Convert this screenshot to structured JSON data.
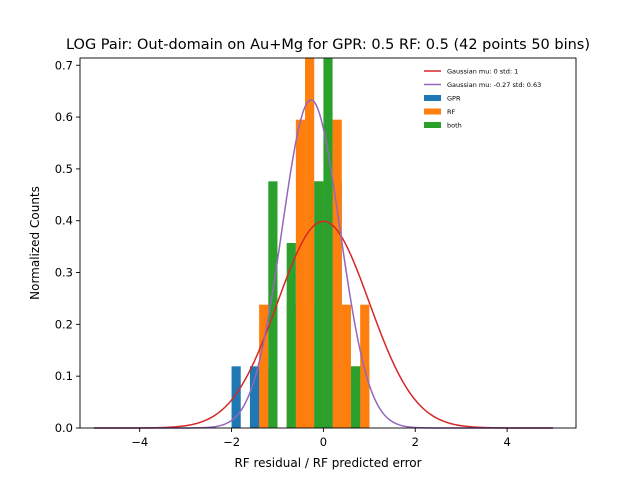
{
  "chart_data": {
    "type": "histogram",
    "title": "LOG Pair: Out-domain on Au+Mg for GPR: 0.5 RF: 0.5 (42 points 50 bins)",
    "xlabel": "RF residual / RF predicted error",
    "ylabel": "Normalized Counts",
    "xlim": [
      -5.3,
      5.5
    ],
    "ylim": [
      0,
      0.714
    ],
    "xticks": [
      -4,
      -2,
      0,
      2,
      4
    ],
    "xtick_labels": [
      "−4",
      "−2",
      "0",
      "2",
      "4"
    ],
    "yticks": [
      0,
      0.1,
      0.2,
      0.3,
      0.4,
      0.5,
      0.6,
      0.7
    ],
    "ytick_labels": [
      "0.0",
      "0.1",
      "0.2",
      "0.3",
      "0.4",
      "0.5",
      "0.6",
      "0.7"
    ],
    "grid": false,
    "legend_position": "top-right",
    "bin_width": 0.2,
    "series": [
      {
        "name": "GPR",
        "kind": "bar",
        "color": "#1f77b4",
        "bins": [
          {
            "x0": -2.0,
            "value": 0.119
          },
          {
            "x0": -1.6,
            "value": 0.119
          },
          {
            "x0": -1.4,
            "value": 0.119
          },
          {
            "x0": -0.6,
            "value": 0.238
          },
          {
            "x0": -0.2,
            "value": 0.238
          },
          {
            "x0": 0.0,
            "value": 0.238
          },
          {
            "x0": 0.2,
            "value": 0.476
          },
          {
            "x0": 0.8,
            "value": 0.119
          }
        ]
      },
      {
        "name": "RF",
        "kind": "bar",
        "color": "#ff7f0e",
        "bins": [
          {
            "x0": -1.4,
            "value": 0.238
          },
          {
            "x0": -1.2,
            "value": 0.119
          },
          {
            "x0": -0.8,
            "value": 0.238
          },
          {
            "x0": -0.6,
            "value": 0.595
          },
          {
            "x0": -0.4,
            "value": 0.714
          },
          {
            "x0": -0.2,
            "value": 0.476
          },
          {
            "x0": 0.2,
            "value": 0.595
          },
          {
            "x0": 0.4,
            "value": 0.238
          },
          {
            "x0": 0.6,
            "value": 0.119
          },
          {
            "x0": 0.8,
            "value": 0.238
          }
        ]
      },
      {
        "name": "both",
        "kind": "bar",
        "color": "#2ca02c",
        "bins": [
          {
            "x0": -1.2,
            "value": 0.476
          },
          {
            "x0": -0.8,
            "value": 0.357
          },
          {
            "x0": -0.2,
            "value": 0.476
          },
          {
            "x0": 0.0,
            "value": 0.714
          },
          {
            "x0": 0.6,
            "value": 0.119
          }
        ]
      }
    ],
    "curves": [
      {
        "name": "Gaussian mu: 0 std: 1",
        "kind": "line",
        "color": "#d62728",
        "mu": 0,
        "std": 1,
        "x_range": [
          -5,
          5
        ]
      },
      {
        "name": "Gaussian mu: -0.27 std: 0.63",
        "kind": "line",
        "color": "#9467bd",
        "mu": -0.27,
        "std": 0.63,
        "x_range": [
          -5,
          5
        ]
      }
    ],
    "legend_order": [
      "Gaussian mu: 0 std: 1",
      "Gaussian mu: -0.27 std: 0.63",
      "GPR",
      "RF",
      "both"
    ]
  }
}
